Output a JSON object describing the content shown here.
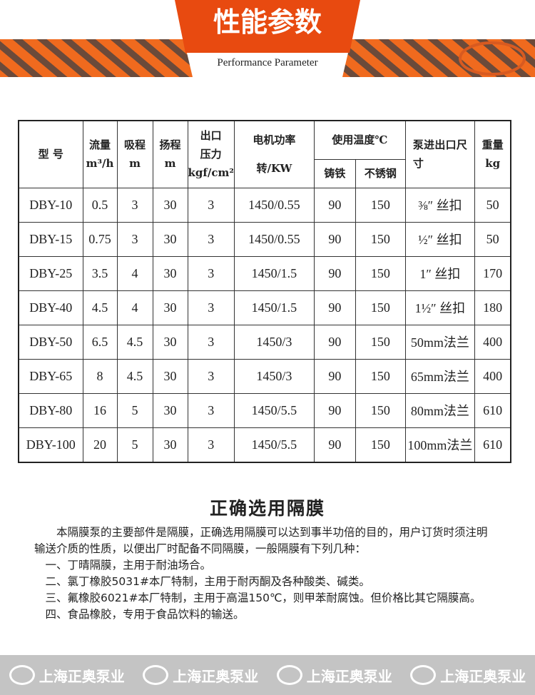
{
  "header": {
    "title": "性能参数",
    "subtitle": "Performance Parameter"
  },
  "table": {
    "headers": {
      "model": "型 号",
      "flow": "流量",
      "flow_unit": "m³/h",
      "suction": "吸程",
      "suction_unit": "m",
      "head": "扬程",
      "head_unit": "m",
      "pressure": "出口压力",
      "pressure_unit": "kgf/cm²",
      "motor": "电机功率",
      "motor_unit": "转/KW",
      "temp": "使用温度℃",
      "temp_iron": "铸铁",
      "temp_steel": "不锈钢",
      "port": "泵进出口尺 寸",
      "weight": "重量",
      "weight_unit": "kg"
    },
    "rows": [
      [
        "DBY-10",
        "0.5",
        "3",
        "30",
        "3",
        "1450/0.55",
        "90",
        "150",
        "⅜″ 丝扣",
        "50"
      ],
      [
        "DBY-15",
        "0.75",
        "3",
        "30",
        "3",
        "1450/0.55",
        "90",
        "150",
        "½″ 丝扣",
        "50"
      ],
      [
        "DBY-25",
        "3.5",
        "4",
        "30",
        "3",
        "1450/1.5",
        "90",
        "150",
        "1″ 丝扣",
        "170"
      ],
      [
        "DBY-40",
        "4.5",
        "4",
        "30",
        "3",
        "1450/1.5",
        "90",
        "150",
        "1½″ 丝扣",
        "180"
      ],
      [
        "DBY-50",
        "6.5",
        "4.5",
        "30",
        "3",
        "1450/3",
        "90",
        "150",
        "50mm法兰",
        "400"
      ],
      [
        "DBY-65",
        "8",
        "4.5",
        "30",
        "3",
        "1450/3",
        "90",
        "150",
        "65mm法兰",
        "400"
      ],
      [
        "DBY-80",
        "16",
        "5",
        "30",
        "3",
        "1450/5.5",
        "90",
        "150",
        "80mm法兰",
        "610"
      ],
      [
        "DBY-100",
        "20",
        "5",
        "30",
        "3",
        "1450/5.5",
        "90",
        "150",
        "100mm法兰",
        "610"
      ]
    ]
  },
  "section": {
    "title": "正确选用隔膜",
    "intro": "本隔膜泵的主要部件是隔膜，正确选用隔膜可以达到事半功倍的目的，用户订货时须注明输送介质的性质，以便出厂时配备不同隔膜，一般隔膜有下列几种：",
    "items": [
      "一、丁晴隔膜，主用于耐油场合。",
      "二、氯丁橡胶5031#本厂特制，主用于耐丙酮及各种酸类、碱类。",
      "三、氟橡胶6021#本厂特制，主用于高温150℃，则甲苯耐腐蚀。但价格比其它隔膜高。",
      "四、食品橡胶，专用于食品饮料的输送。"
    ]
  },
  "footer": {
    "watermarks": [
      "上海正奥泵业",
      "上海正奥泵业",
      "上海正奥泵业",
      "上海正奥泵业"
    ]
  }
}
